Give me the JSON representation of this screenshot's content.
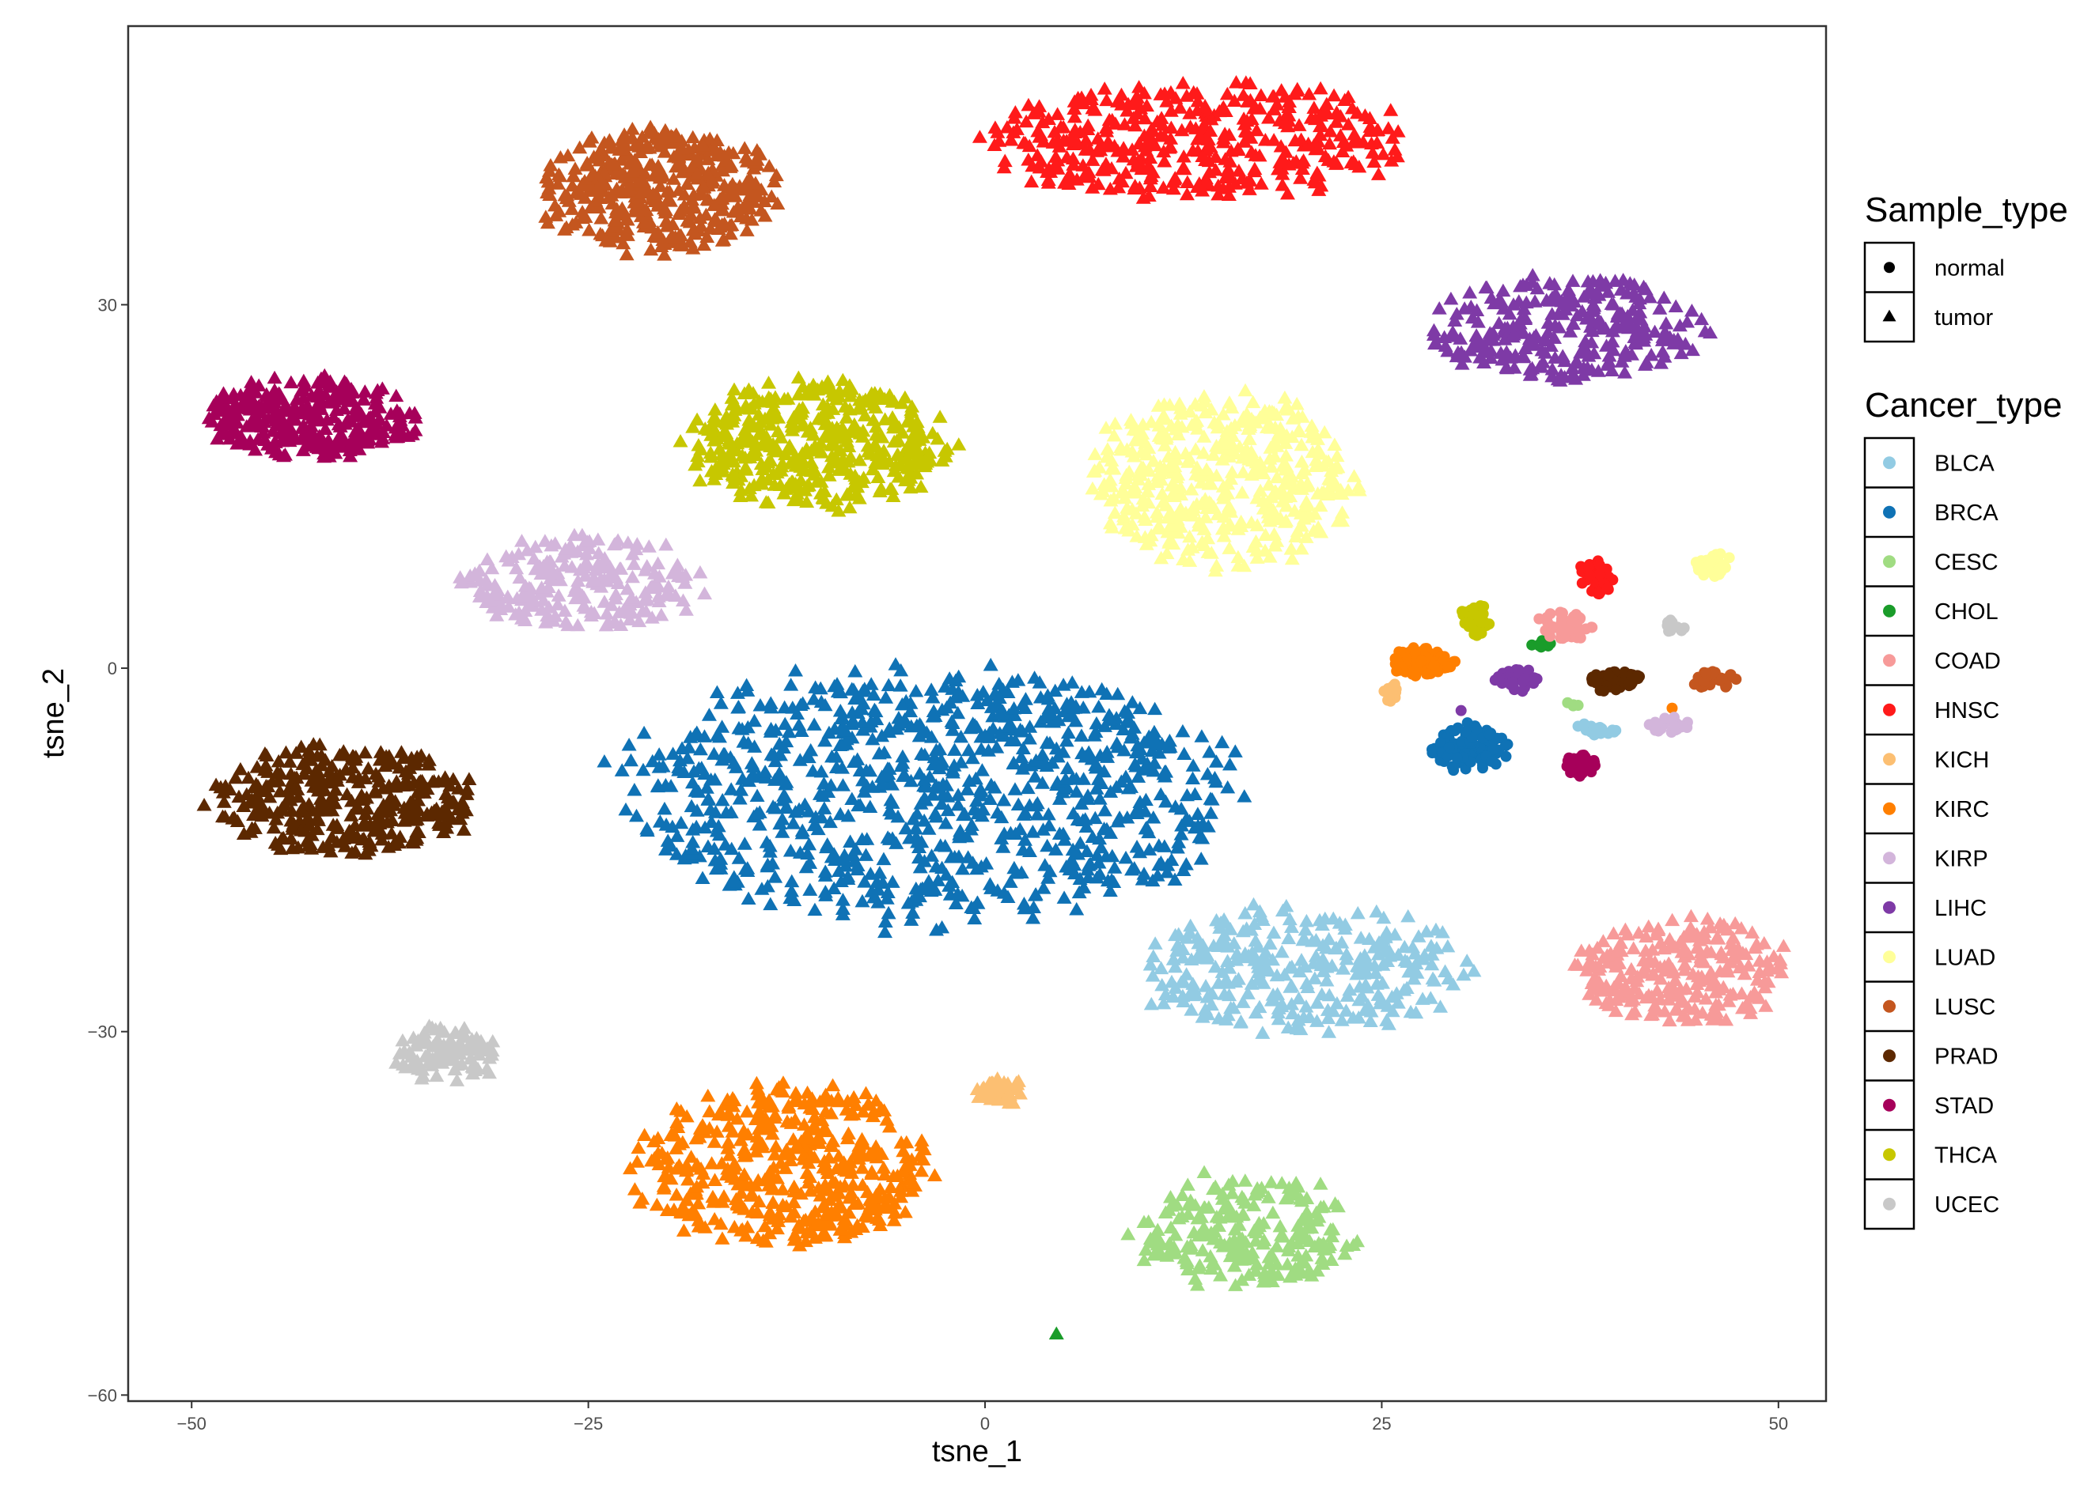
{
  "chart_data": {
    "type": "scatter",
    "xlabel": "tsne_1",
    "ylabel": "tsne_2",
    "xlim": [
      -54,
      53
    ],
    "ylim": [
      -60.5,
      53
    ],
    "x_ticks": [
      -50,
      -25,
      0,
      25,
      50
    ],
    "y_ticks": [
      -60,
      -30,
      0,
      30
    ],
    "grid": false,
    "legend_position": "right",
    "legends": [
      {
        "title": "Sample_type",
        "entries": [
          {
            "label": "normal",
            "shape": "circle"
          },
          {
            "label": "tumor",
            "shape": "triangle"
          }
        ]
      },
      {
        "title": "Cancer_type",
        "entries": [
          {
            "label": "BLCA",
            "color": "#92cbe3"
          },
          {
            "label": "BRCA",
            "color": "#0f72b5"
          },
          {
            "label": "CESC",
            "color": "#a0dc82"
          },
          {
            "label": "CHOL",
            "color": "#1a9c2a"
          },
          {
            "label": "COAD",
            "color": "#f79a99"
          },
          {
            "label": "HNSC",
            "color": "#ff1a1a"
          },
          {
            "label": "KICH",
            "color": "#fcbf72"
          },
          {
            "label": "KIRC",
            "color": "#ff7f00"
          },
          {
            "label": "KIRP",
            "color": "#d3b5db"
          },
          {
            "label": "LIHC",
            "color": "#7e3aa6"
          },
          {
            "label": "LUAD",
            "color": "#ffff99"
          },
          {
            "label": "LUSC",
            "color": "#c4561f"
          },
          {
            "label": "PRAD",
            "color": "#5c2800"
          },
          {
            "label": "STAD",
            "color": "#a6005a"
          },
          {
            "label": "THCA",
            "color": "#c7c700"
          },
          {
            "label": "UCEC",
            "color": "#c8c8c8"
          }
        ]
      }
    ],
    "clusters": [
      {
        "type": "BLCA",
        "shape": "triangle",
        "cx": 20,
        "cy": -25,
        "rx": 10.5,
        "ry": 5.5,
        "n": 300
      },
      {
        "type": "BRCA",
        "shape": "triangle",
        "cx": -4,
        "cy": -10.5,
        "rx": 20,
        "ry": 11,
        "n": 900
      },
      {
        "type": "CESC",
        "shape": "triangle",
        "cx": 16.5,
        "cy": -46.5,
        "rx": 7.5,
        "ry": 5,
        "n": 220
      },
      {
        "type": "CHOL",
        "shape": "triangle",
        "cx": 4.5,
        "cy": -55,
        "rx": 0,
        "ry": 0,
        "n": 1
      },
      {
        "type": "COAD",
        "shape": "triangle",
        "cx": 44,
        "cy": -25,
        "rx": 7,
        "ry": 4.5,
        "n": 250
      },
      {
        "type": "HNSC",
        "shape": "triangle",
        "cx": 13,
        "cy": 43.5,
        "rx": 14,
        "ry": 5,
        "n": 400
      },
      {
        "type": "KICH",
        "shape": "triangle",
        "cx": 1,
        "cy": -35,
        "rx": 1.6,
        "ry": 1.3,
        "n": 40
      },
      {
        "type": "KIRC",
        "shape": "triangle",
        "cx": -12.5,
        "cy": -41,
        "rx": 10,
        "ry": 7,
        "n": 450
      },
      {
        "type": "KIRP",
        "shape": "triangle",
        "cx": -25.5,
        "cy": 7,
        "rx": 8,
        "ry": 4,
        "n": 220
      },
      {
        "type": "LIHC",
        "shape": "triangle",
        "cx": 36.5,
        "cy": 28,
        "rx": 9,
        "ry": 4.5,
        "n": 280
      },
      {
        "type": "LUAD",
        "shape": "triangle",
        "cx": 15,
        "cy": 15.5,
        "rx": 8.5,
        "ry": 7.5,
        "n": 450
      },
      {
        "type": "LUSC",
        "shape": "triangle",
        "cx": -20.5,
        "cy": 39.5,
        "rx": 8,
        "ry": 5.5,
        "n": 420
      },
      {
        "type": "PRAD",
        "shape": "triangle",
        "cx": -40.5,
        "cy": -11,
        "rx": 8.5,
        "ry": 5,
        "n": 350
      },
      {
        "type": "STAD",
        "shape": "triangle",
        "cx": -42.5,
        "cy": 20.5,
        "rx": 7,
        "ry": 3.5,
        "n": 300
      },
      {
        "type": "THCA",
        "shape": "triangle",
        "cx": -10.5,
        "cy": 18.5,
        "rx": 8.5,
        "ry": 5.5,
        "n": 420
      },
      {
        "type": "UCEC",
        "shape": "triangle",
        "cx": -34,
        "cy": -32,
        "rx": 3.5,
        "ry": 2.5,
        "n": 90
      },
      {
        "type": "BLCA",
        "shape": "circle",
        "cx": 38.5,
        "cy": -5,
        "rx": 1.5,
        "ry": 0.5,
        "n": 18
      },
      {
        "type": "BRCA",
        "shape": "circle",
        "cx": 30.5,
        "cy": -6.5,
        "rx": 2.5,
        "ry": 2,
        "n": 110
      },
      {
        "type": "CESC",
        "shape": "circle",
        "cx": 37,
        "cy": -3,
        "rx": 0.5,
        "ry": 0.4,
        "n": 4
      },
      {
        "type": "CHOL",
        "shape": "circle",
        "cx": 35,
        "cy": 2,
        "rx": 0.7,
        "ry": 0.5,
        "n": 9
      },
      {
        "type": "COAD",
        "shape": "circle",
        "cx": 36.5,
        "cy": 3.5,
        "rx": 1.8,
        "ry": 1.2,
        "n": 50
      },
      {
        "type": "HNSC",
        "shape": "circle",
        "cx": 38.5,
        "cy": 7.5,
        "rx": 1.2,
        "ry": 1.5,
        "n": 40
      },
      {
        "type": "KICH",
        "shape": "circle",
        "cx": 25.5,
        "cy": -2,
        "rx": 0.6,
        "ry": 0.9,
        "n": 12
      },
      {
        "type": "KIRC",
        "shape": "circle",
        "cx": 27.5,
        "cy": 0.5,
        "rx": 2.2,
        "ry": 1.3,
        "n": 80
      },
      {
        "type": "KIRC",
        "shape": "circle",
        "cx": 43.3,
        "cy": -3.3,
        "rx": 0,
        "ry": 0,
        "n": 1
      },
      {
        "type": "KIRP",
        "shape": "circle",
        "cx": 43,
        "cy": -4.7,
        "rx": 1.5,
        "ry": 0.7,
        "n": 22
      },
      {
        "type": "LIHC",
        "shape": "circle",
        "cx": 33.5,
        "cy": -1,
        "rx": 1.5,
        "ry": 1,
        "n": 40
      },
      {
        "type": "LIHC",
        "shape": "circle",
        "cx": 30,
        "cy": -3.5,
        "rx": 0,
        "ry": 0,
        "n": 1
      },
      {
        "type": "LUAD",
        "shape": "circle",
        "cx": 46,
        "cy": 8.5,
        "rx": 1.3,
        "ry": 1,
        "n": 35
      },
      {
        "type": "LUSC",
        "shape": "circle",
        "cx": 46,
        "cy": -1,
        "rx": 1.5,
        "ry": 0.8,
        "n": 40
      },
      {
        "type": "PRAD",
        "shape": "circle",
        "cx": 39.5,
        "cy": -1,
        "rx": 1.8,
        "ry": 0.9,
        "n": 50
      },
      {
        "type": "STAD",
        "shape": "circle",
        "cx": 37.5,
        "cy": -8,
        "rx": 1.2,
        "ry": 1,
        "n": 32
      },
      {
        "type": "THCA",
        "shape": "circle",
        "cx": 31,
        "cy": 4,
        "rx": 1.2,
        "ry": 1.3,
        "n": 40
      },
      {
        "type": "UCEC",
        "shape": "circle",
        "cx": 43.5,
        "cy": 3.5,
        "rx": 0.8,
        "ry": 0.6,
        "n": 15
      }
    ]
  }
}
